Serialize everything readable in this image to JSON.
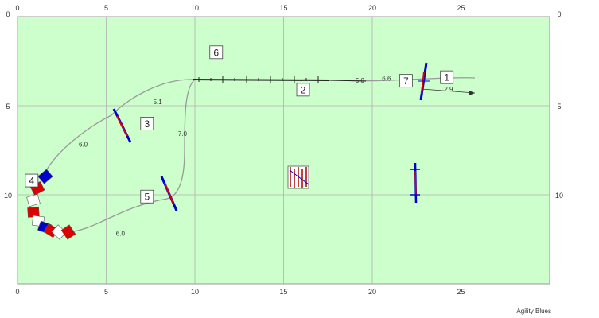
{
  "grid": {
    "x_min": 0,
    "x_max": 30,
    "y_min": 0,
    "y_max": 15,
    "x_ticks": [
      0,
      5,
      10,
      15,
      20,
      25
    ],
    "y_ticks": [
      0,
      5,
      10
    ],
    "x_tick_labels": [
      "0",
      "5",
      "10",
      "15",
      "20",
      "25"
    ],
    "y_tick_labels": [
      "0",
      "5",
      "10"
    ]
  },
  "colors": {
    "field": "#ccffcc",
    "grid_line": "#b0b0b0",
    "path": "#999999",
    "bar_blue": "#0000cc",
    "bar_red": "#dd0000"
  },
  "obstacles": [
    {
      "number": "1",
      "type": "jump",
      "x": 23.0,
      "y": 3.6,
      "angle": 5
    },
    {
      "number": "2",
      "type": "dogwalk",
      "x": 15.4,
      "y": 3.4
    },
    {
      "number": "3",
      "type": "jump",
      "x": 6.0,
      "y": 6.3,
      "angle": -30
    },
    {
      "number": "4",
      "type": "tunnel",
      "x": 1.0,
      "y": 9.6
    },
    {
      "number": "5",
      "type": "jump",
      "x": 8.6,
      "y": 10.0,
      "angle": -25
    },
    {
      "number": "6",
      "type": "dogwalk",
      "x": 10.0,
      "y": 3.4
    },
    {
      "number": "7",
      "type": "jump",
      "x": 23.0,
      "y": 3.6
    }
  ],
  "number_labels": [
    {
      "text": "1",
      "x": 24.2,
      "y": 3.4
    },
    {
      "text": "2",
      "x": 16.1,
      "y": 4.1
    },
    {
      "text": "3",
      "x": 7.3,
      "y": 6.0
    },
    {
      "text": "4",
      "x": 0.8,
      "y": 9.2
    },
    {
      "text": "5",
      "x": 7.3,
      "y": 10.1
    },
    {
      "text": "6",
      "x": 11.2,
      "y": 2.0
    },
    {
      "text": "7",
      "x": 21.9,
      "y": 3.6
    }
  ],
  "distances": [
    {
      "text": "2.9",
      "x": 24.3,
      "y": 4.2
    },
    {
      "text": "5.0",
      "x": 19.3,
      "y": 3.7
    },
    {
      "text": "6.6",
      "x": 20.8,
      "y": 3.6
    },
    {
      "text": "5.1",
      "x": 7.9,
      "y": 4.9
    },
    {
      "text": "6.0",
      "x": 3.7,
      "y": 7.3
    },
    {
      "text": "7.0",
      "x": 9.3,
      "y": 6.7
    },
    {
      "text": "6.0",
      "x": 5.8,
      "y": 12.3
    }
  ],
  "static_obstacles": [
    {
      "type": "weave",
      "x": 15.2,
      "y": 8.8
    },
    {
      "type": "single_bar",
      "x": 22.6,
      "y": 9.5
    }
  ],
  "brand": "Agility Blues"
}
